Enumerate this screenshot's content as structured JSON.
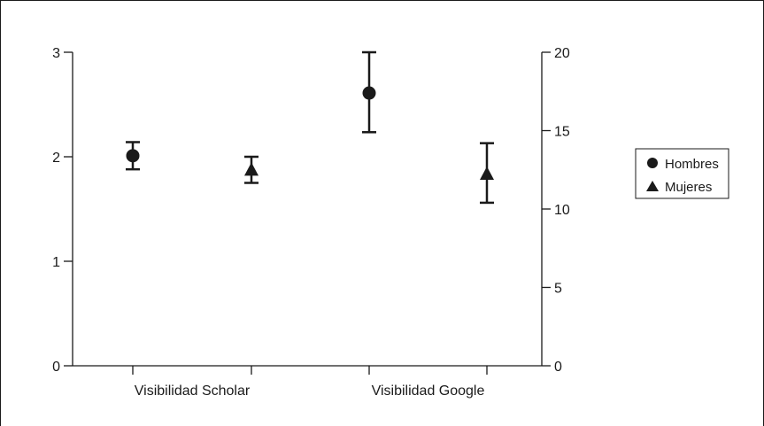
{
  "chart_data": {
    "type": "scatter",
    "categories": [
      "Visibilidad Scholar",
      "Visibilidad Google"
    ],
    "series": [
      {
        "name": "Hombres",
        "marker": "circle",
        "axis": "left",
        "points": [
          {
            "category": "Visibilidad Scholar",
            "y": 2.01,
            "err_low": 1.88,
            "err_high": 2.14
          }
        ]
      },
      {
        "name": "Mujeres",
        "marker": "triangle",
        "axis": "left",
        "points": [
          {
            "category": "Visibilidad Scholar",
            "y": 1.87,
            "err_low": 1.75,
            "err_high": 2.0
          }
        ]
      },
      {
        "name": "Hombres",
        "marker": "circle",
        "axis": "right",
        "points": [
          {
            "category": "Visibilidad Google",
            "y": 17.4,
            "err_low": 14.9,
            "err_high": 20.0
          }
        ]
      },
      {
        "name": "Mujeres",
        "marker": "triangle",
        "axis": "right",
        "points": [
          {
            "category": "Visibilidad Google",
            "y": 12.2,
            "err_low": 10.4,
            "err_high": 14.2
          }
        ]
      }
    ],
    "y_left": {
      "ylim": [
        0,
        3
      ],
      "ticks": [
        "0",
        "1",
        "2",
        "3"
      ]
    },
    "y_right": {
      "ylim": [
        0,
        20
      ],
      "ticks": [
        "0",
        "5",
        "10",
        "15",
        "20"
      ]
    },
    "x_tick_labels": [
      "Visibilidad Scholar",
      "Visibilidad Google"
    ],
    "legend": {
      "placement": "right",
      "entries": [
        {
          "label": "Hombres",
          "marker": "circle"
        },
        {
          "label": "Mujeres",
          "marker": "triangle"
        }
      ]
    },
    "colors": {
      "ink": "#1a1a1a"
    },
    "grid": false,
    "title": "",
    "xlabel": "",
    "ylabel": ""
  }
}
